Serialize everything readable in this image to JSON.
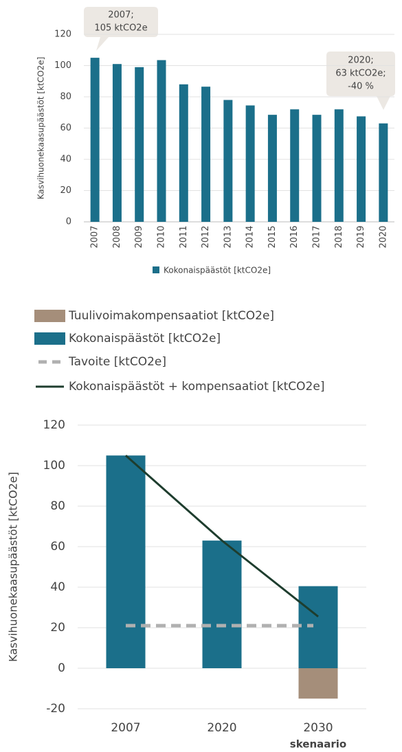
{
  "chart_data": [
    {
      "type": "bar",
      "y_label": "Kasvihuonekaasupäästöt [ktCO2e]",
      "categories": [
        "2007",
        "2008",
        "2009",
        "2010",
        "2011",
        "2012",
        "2013",
        "2014",
        "2015",
        "2016",
        "2017",
        "2018",
        "2019",
        "2020"
      ],
      "series": [
        {
          "name": "Kokonaispäästöt [ktCO2e]",
          "color": "#1b6f8a",
          "values": [
            105,
            101,
            99,
            103.5,
            88,
            86.5,
            78,
            74.5,
            68.5,
            72,
            68.5,
            72,
            67.5,
            63
          ]
        }
      ],
      "ylim": [
        0,
        120
      ],
      "yticks": [
        0,
        20,
        40,
        60,
        80,
        100,
        120
      ],
      "grid": true,
      "annotations": [
        [
          "2007;",
          "105 ktCO2e"
        ],
        [
          "2020;",
          "63 ktCO2e;",
          "-40 %"
        ]
      ]
    },
    {
      "type": "combo",
      "y_label": "Kasvihuonekaasupäästöt [ktCO2e]",
      "categories": [
        "2007",
        "2020",
        "2030\nskenaario"
      ],
      "series": [
        {
          "name": "Tuulivoimakompensaatiot [ktCO2e]",
          "kind": "bar",
          "color": "#a58e7a",
          "values": [
            null,
            null,
            -15
          ]
        },
        {
          "name": "Kokonaispäästöt [ktCO2e]",
          "kind": "bar",
          "color": "#1b6f8a",
          "values": [
            105,
            63,
            40.5
          ]
        },
        {
          "name": "Tavoite [ktCO2e]",
          "kind": "dashed-line",
          "color": "#b0b0b0",
          "values": [
            21,
            21,
            21
          ]
        },
        {
          "name": "Kokonaispäästöt + kompensaatiot [ktCO2e]",
          "kind": "line",
          "color": "#1e3d2e",
          "values": [
            105,
            63,
            25.5
          ]
        }
      ],
      "ylim": [
        -20,
        120
      ],
      "yticks": [
        -20,
        0,
        20,
        40,
        60,
        80,
        100,
        120
      ],
      "grid": true
    }
  ]
}
